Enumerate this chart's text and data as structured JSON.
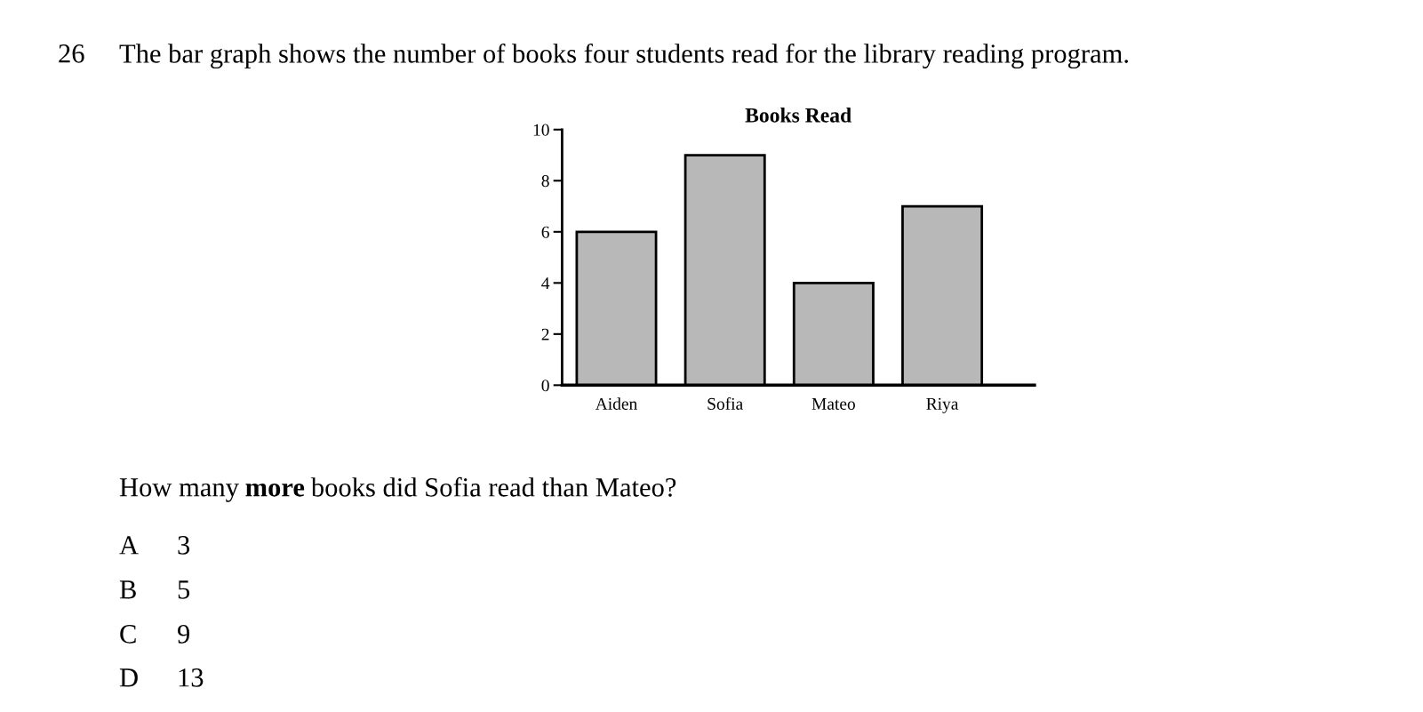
{
  "chart_data": {
    "type": "bar",
    "title": "Books Read",
    "categories": [
      "Aiden",
      "Sofia",
      "Mateo",
      "Riya"
    ],
    "values": [
      6,
      9,
      4,
      7
    ],
    "color": "#b8b8b8",
    "ylim": [
      0,
      10
    ],
    "yticks": [
      0,
      2,
      4,
      6,
      8,
      10
    ],
    "grid": false,
    "legend": false,
    "annotations": [
      "26",
      "The bar graph shows the number of books four students read for the library reading program.",
      "How many",
      "more",
      "books did Sofia read than Mateo?",
      "A",
      "3",
      "B",
      "5",
      "C",
      "9",
      "D",
      "13"
    ]
  }
}
